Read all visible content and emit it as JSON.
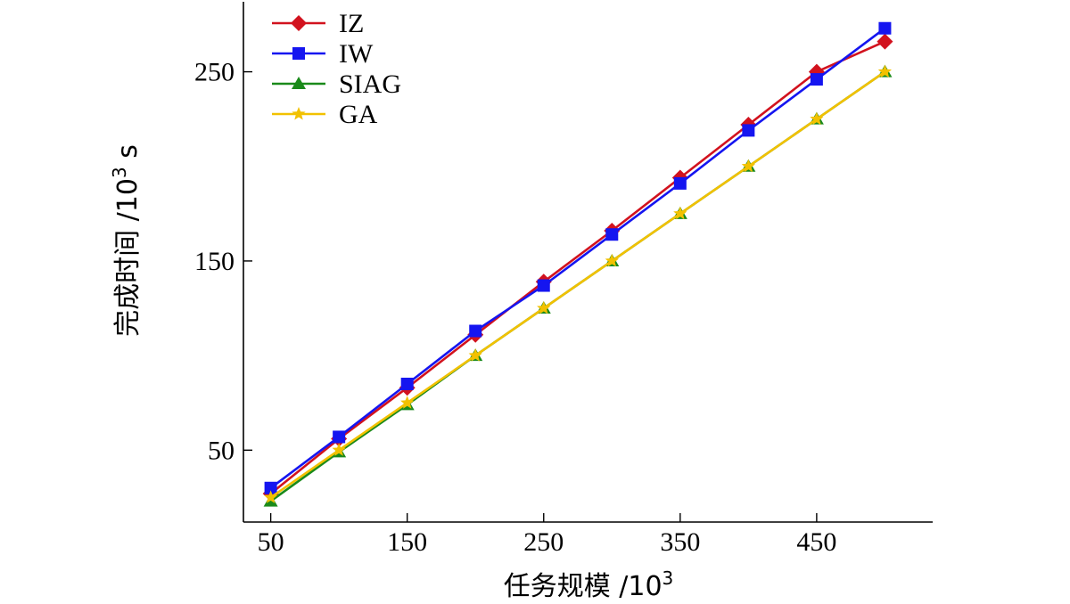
{
  "chart_data": {
    "type": "line",
    "title": "",
    "xlabel": "任务规模 /10",
    "xlabel_sup": "3",
    "ylabel": "完成时间 /10",
    "ylabel_sup": "3",
    "ylabel_unit": " s",
    "x": [
      50,
      100,
      150,
      200,
      250,
      300,
      350,
      400,
      450,
      500
    ],
    "xticks": [
      50,
      150,
      250,
      350,
      450
    ],
    "yticks": [
      50,
      150,
      250
    ],
    "xlim": [
      30,
      535
    ],
    "ylim": [
      12,
      287
    ],
    "grid": false,
    "legend_position": "top-left",
    "series": [
      {
        "name": "IZ",
        "color": "#d2121e",
        "marker": "diamond",
        "values": [
          27,
          56,
          83,
          111,
          139,
          166,
          194,
          222,
          250,
          266
        ]
      },
      {
        "name": "IW",
        "color": "#1515f0",
        "marker": "square",
        "values": [
          30,
          57,
          85,
          113,
          137,
          164,
          191,
          219,
          246,
          273
        ]
      },
      {
        "name": "SIAG",
        "color": "#1a8a1a",
        "marker": "triangle",
        "values": [
          23,
          49,
          74,
          100,
          125,
          150,
          175,
          200,
          225,
          250
        ]
      },
      {
        "name": "GA",
        "color": "#f2c100",
        "marker": "star",
        "values": [
          25,
          50,
          75,
          100,
          125,
          150,
          175,
          200,
          225,
          250
        ]
      }
    ]
  }
}
